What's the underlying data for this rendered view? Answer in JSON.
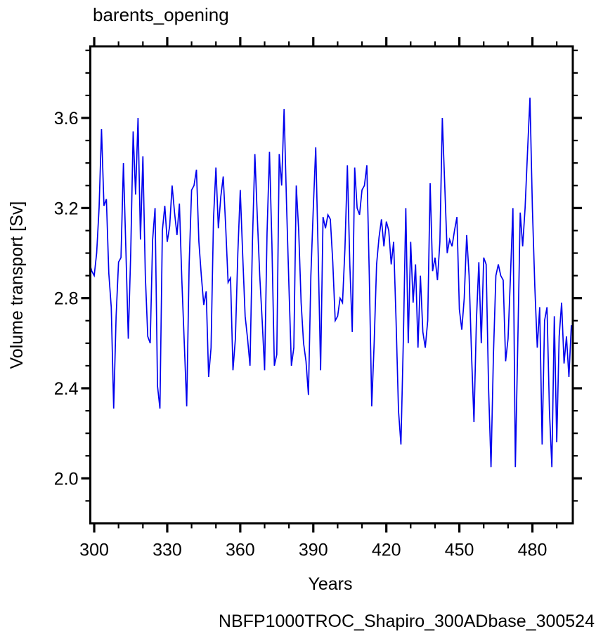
{
  "page": {
    "background": "#ffffff"
  },
  "chart": {
    "title": "barents_opening",
    "xlabel": "Years",
    "ylabel": "Volume transport [Sv]",
    "footer": "NBFP1000TROC_Shapiro_300ADbase_300524",
    "line_color": "#0000ee",
    "footer_color": "#0000ee",
    "axis_color": "#000000"
  },
  "chart_data": {
    "type": "line",
    "title": "barents_opening",
    "xlabel": "Years",
    "ylabel": "Volume transport [Sv]",
    "grid": false,
    "legend": null,
    "xlim": [
      298.4,
      496.6
    ],
    "ylim": [
      1.8,
      3.918
    ],
    "x_major_ticks": [
      300,
      330,
      360,
      390,
      420,
      450,
      480
    ],
    "x_major_labels": [
      "300",
      "330",
      "360",
      "390",
      "420",
      "450",
      "480"
    ],
    "x_minor_ticks": [
      310,
      320,
      340,
      350,
      370,
      380,
      400,
      410,
      430,
      440,
      460,
      470,
      490
    ],
    "y_major_ticks": [
      2.0,
      2.4,
      2.8,
      3.2,
      3.6
    ],
    "y_major_labels": [
      "2.0",
      "2.4",
      "2.8",
      "3.2",
      "3.6"
    ],
    "y_minor_ticks": [
      1.9,
      2.1,
      2.2,
      2.3,
      2.5,
      2.6,
      2.7,
      2.9,
      3.0,
      3.1,
      3.3,
      3.4,
      3.5,
      3.7,
      3.8,
      3.9
    ],
    "series": [
      {
        "name": "volume_transport",
        "start_year": 298,
        "year_step": 1,
        "end_year": 496,
        "values": [
          2.96,
          2.92,
          2.9,
          3.0,
          3.2,
          3.55,
          3.21,
          3.24,
          2.91,
          2.76,
          2.31,
          2.72,
          2.96,
          2.98,
          3.4,
          3.02,
          2.62,
          3.0,
          3.54,
          3.26,
          3.6,
          3.06,
          3.43,
          2.9,
          2.63,
          2.6,
          3.06,
          3.2,
          2.41,
          2.31,
          3.1,
          3.21,
          3.05,
          3.12,
          3.3,
          3.18,
          3.08,
          3.22,
          2.88,
          2.6,
          2.32,
          2.95,
          3.28,
          3.3,
          3.37,
          3.05,
          2.9,
          2.77,
          2.83,
          2.45,
          2.58,
          3.15,
          3.38,
          3.11,
          3.25,
          3.34,
          3.12,
          2.87,
          2.89,
          2.48,
          2.62,
          3.0,
          3.28,
          2.99,
          2.72,
          2.62,
          2.5,
          3.05,
          3.44,
          3.16,
          2.9,
          2.7,
          2.48,
          3.09,
          3.45,
          3.04,
          2.5,
          2.55,
          3.44,
          3.3,
          3.64,
          3.22,
          2.85,
          2.5,
          2.58,
          3.3,
          3.1,
          2.78,
          2.6,
          2.52,
          2.37,
          2.9,
          3.2,
          3.47,
          3.0,
          2.48,
          3.16,
          3.11,
          3.17,
          3.15,
          2.96,
          2.7,
          2.72,
          2.8,
          2.78,
          3.02,
          3.39,
          2.95,
          2.65,
          3.38,
          3.2,
          3.17,
          3.28,
          3.3,
          3.39,
          2.9,
          2.32,
          2.6,
          2.95,
          3.07,
          3.15,
          3.03,
          3.14,
          3.1,
          2.95,
          3.05,
          2.7,
          2.3,
          2.15,
          2.62,
          3.2,
          2.6,
          3.05,
          2.78,
          2.95,
          2.58,
          2.9,
          2.65,
          2.58,
          2.7,
          3.31,
          2.92,
          2.98,
          2.88,
          3.05,
          3.6,
          3.3,
          3.0,
          3.06,
          3.03,
          3.1,
          3.16,
          2.75,
          2.66,
          2.8,
          3.08,
          2.9,
          2.55,
          2.25,
          2.7,
          2.96,
          2.6,
          2.98,
          2.95,
          2.4,
          2.05,
          2.55,
          2.9,
          2.95,
          2.9,
          2.88,
          2.52,
          2.62,
          2.9,
          3.2,
          2.05,
          2.6,
          3.18,
          3.03,
          3.2,
          3.45,
          3.69,
          3.2,
          2.85,
          2.58,
          2.76,
          2.15,
          2.7,
          2.76,
          2.3,
          2.05,
          2.72,
          2.16,
          2.63,
          2.78,
          2.51,
          2.63,
          2.45,
          2.68
        ]
      }
    ]
  }
}
